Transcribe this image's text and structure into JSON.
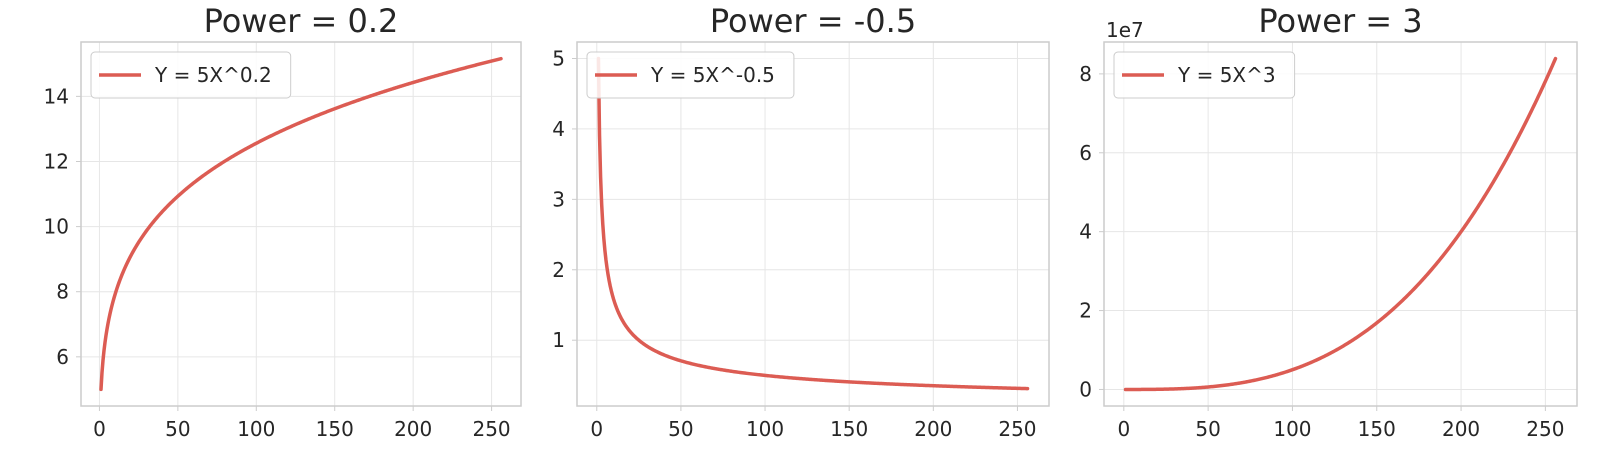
{
  "chart_data": [
    {
      "type": "line",
      "title": "Power = 0.2",
      "xlabel": "",
      "ylabel": "",
      "formula": {
        "coefficient": 5,
        "power": 0.2
      },
      "x": [
        1,
        2,
        5,
        10,
        20,
        30,
        50,
        75,
        100,
        150,
        200,
        256
      ],
      "series": [
        {
          "name": "Y = 5X^0.2",
          "values": [
            5.0,
            5.74,
            6.9,
            7.92,
            9.1,
            9.9,
            10.92,
            11.85,
            12.56,
            13.65,
            14.43,
            15.16
          ]
        }
      ],
      "xlim": [
        -11.75,
        268.75
      ],
      "ylim": [
        4.49,
        15.67
      ],
      "x_ticks": [
        0,
        50,
        100,
        150,
        200,
        250
      ],
      "y_ticks": [
        6,
        8,
        10,
        12,
        14
      ],
      "y_offset_text": "",
      "grid": true,
      "legend_position": "upper left",
      "line_color": "#dc5c53"
    },
    {
      "type": "line",
      "title": "Power = -0.5",
      "xlabel": "",
      "ylabel": "",
      "formula": {
        "coefficient": 5,
        "power": -0.5
      },
      "x": [
        1,
        2,
        5,
        10,
        20,
        30,
        50,
        75,
        100,
        150,
        200,
        256
      ],
      "series": [
        {
          "name": "Y = 5X^-0.5",
          "values": [
            5.0,
            3.54,
            2.24,
            1.58,
            1.12,
            0.91,
            0.71,
            0.58,
            0.5,
            0.41,
            0.35,
            0.31
          ]
        }
      ],
      "xlim": [
        -11.75,
        268.75
      ],
      "ylim": [
        0.0657,
        5.2343
      ],
      "x_ticks": [
        0,
        50,
        100,
        150,
        200,
        250
      ],
      "y_ticks": [
        1,
        2,
        3,
        4,
        5
      ],
      "y_offset_text": "",
      "grid": true,
      "legend_position": "upper left",
      "line_color": "#dc5c53"
    },
    {
      "type": "line",
      "title": "Power = 3",
      "xlabel": "",
      "ylabel": "",
      "formula": {
        "coefficient": 5,
        "power": 3
      },
      "x": [
        1,
        25,
        50,
        75,
        100,
        125,
        150,
        175,
        200,
        225,
        256
      ],
      "series": [
        {
          "name": "Y = 5X^3",
          "values": [
            5,
            78125,
            625000,
            2109375,
            5000000,
            9765625,
            16875000,
            26796875,
            40000000,
            56953125,
            83886080
          ]
        }
      ],
      "xlim": [
        -11.75,
        268.75
      ],
      "ylim": [
        -4194299,
        88080384
      ],
      "x_ticks": [
        0,
        50,
        100,
        150,
        200,
        250
      ],
      "y_ticks": [
        0,
        20000000,
        40000000,
        60000000,
        80000000
      ],
      "y_tick_labels": [
        "0",
        "2",
        "4",
        "6",
        "8"
      ],
      "y_offset_text": "1e7",
      "grid": true,
      "legend_position": "upper left",
      "line_color": "#dc5c53"
    }
  ]
}
